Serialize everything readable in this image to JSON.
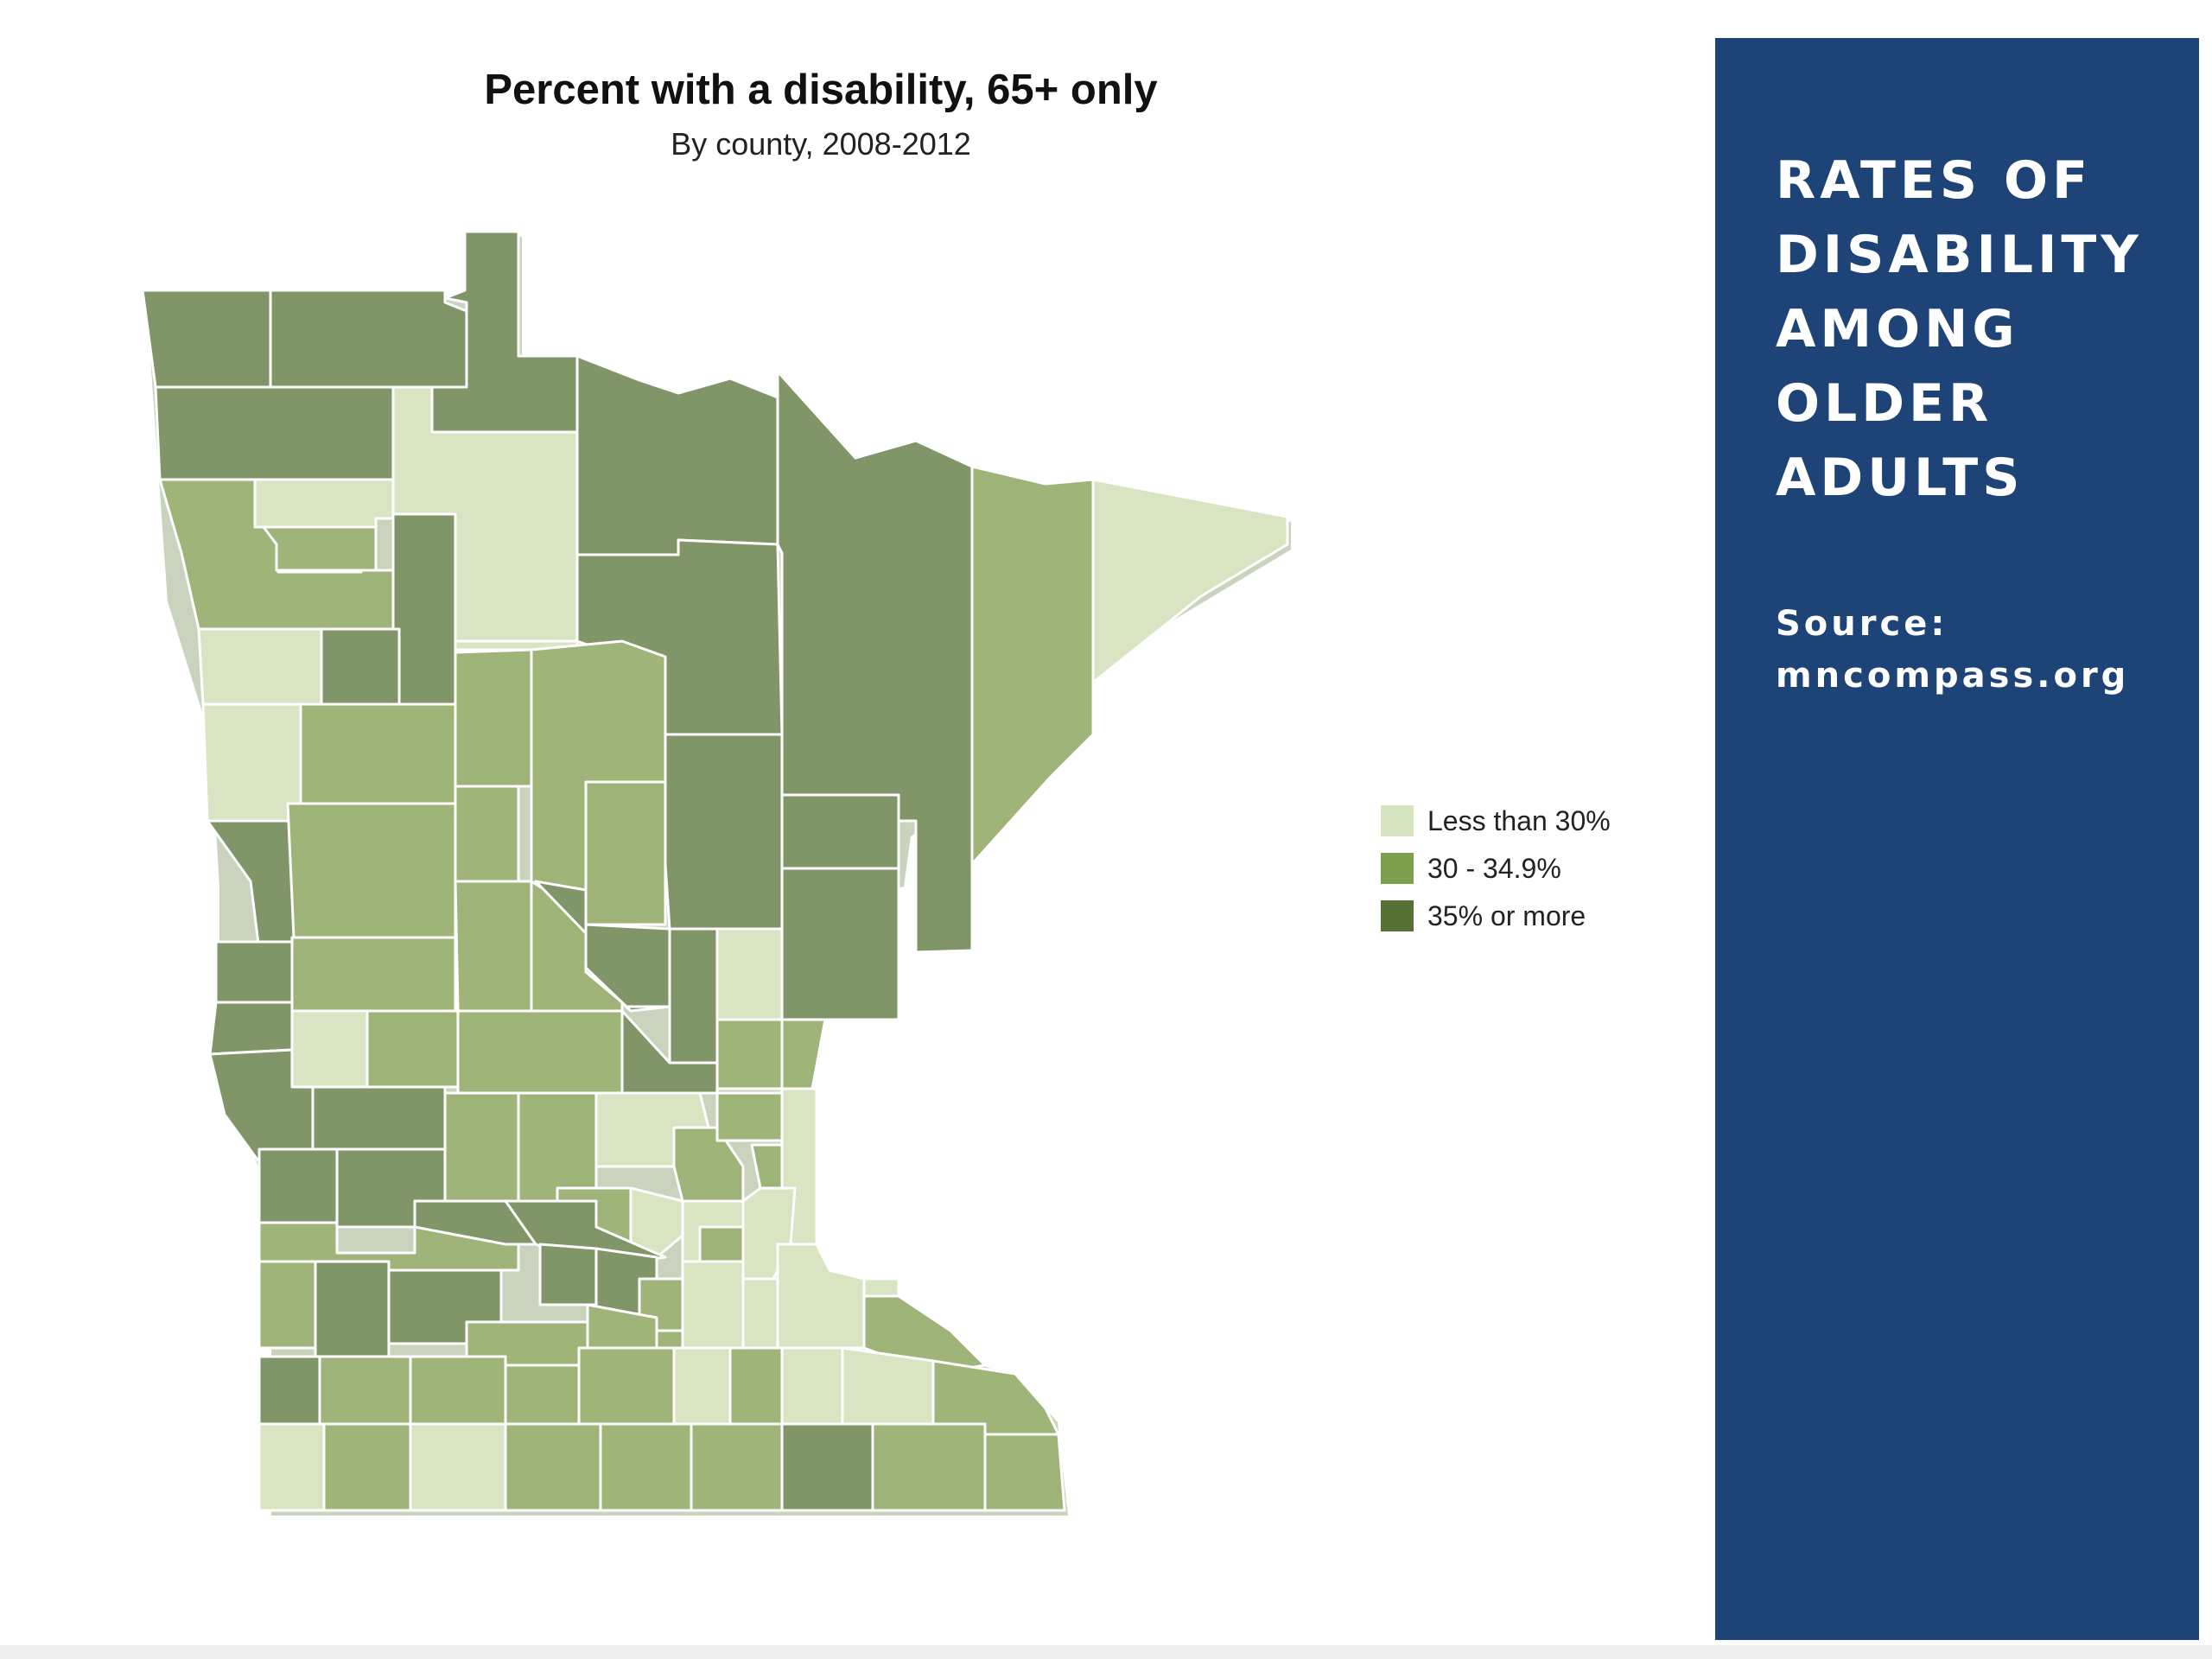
{
  "map": {
    "title": "Percent with a disability, 65+ only",
    "subtitle": "By county, 2008-2012",
    "region": "Minnesota counties",
    "legend": [
      {
        "label": "Less than 30%",
        "color": "#d9e4c3"
      },
      {
        "label": "30 - 34.9%",
        "color": "#9eb478"
      },
      {
        "label": "35% or more",
        "color": "#809668"
      }
    ],
    "legend_swatch_colors": [
      "#d6e4c0",
      "#7e9f4e",
      "#566f34"
    ]
  },
  "panel": {
    "title_lines": [
      "RATES OF",
      "DISABILITY",
      "AMONG",
      "OLDER",
      "ADULTS"
    ],
    "source_lines": [
      "Source:",
      "mncompass.org"
    ],
    "background": "#1e4477"
  }
}
